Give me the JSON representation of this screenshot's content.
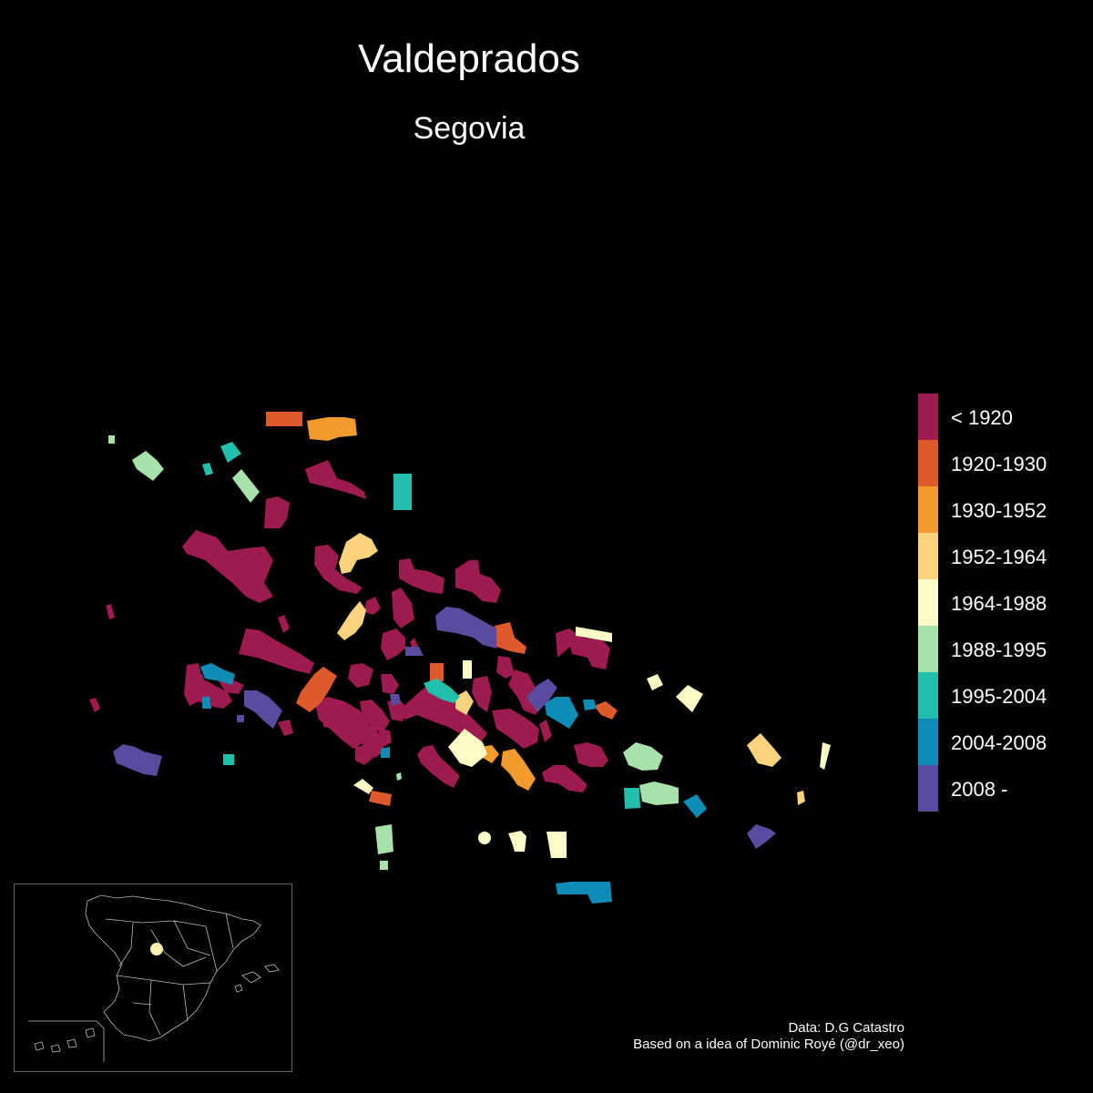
{
  "title": "Valdeprados",
  "subtitle": "Segovia",
  "legend": {
    "items": [
      {
        "label": "< 1920",
        "color": "#9e1b4f"
      },
      {
        "label": "1920-1930",
        "color": "#de5a2b"
      },
      {
        "label": "1930-1952",
        "color": "#f29a2e"
      },
      {
        "label": "1952-1964",
        "color": "#fbd27e"
      },
      {
        "label": "1964-1988",
        "color": "#fdfcc6"
      },
      {
        "label": "1988-1995",
        "color": "#a8e2ab"
      },
      {
        "label": "1995-2004",
        "color": "#23bfad"
      },
      {
        "label": "2004-2008",
        "color": "#0d8cb5"
      },
      {
        "label": "2008 -",
        "color": "#5b4b9e"
      }
    ]
  },
  "credits": {
    "line1": "Data: D.G Catastro",
    "line2": "Based on a idea of Dominic Royé (@dr_xeo)"
  },
  "inset": {
    "marker_color": "#fdf1b2",
    "border_color": "#666666"
  }
}
